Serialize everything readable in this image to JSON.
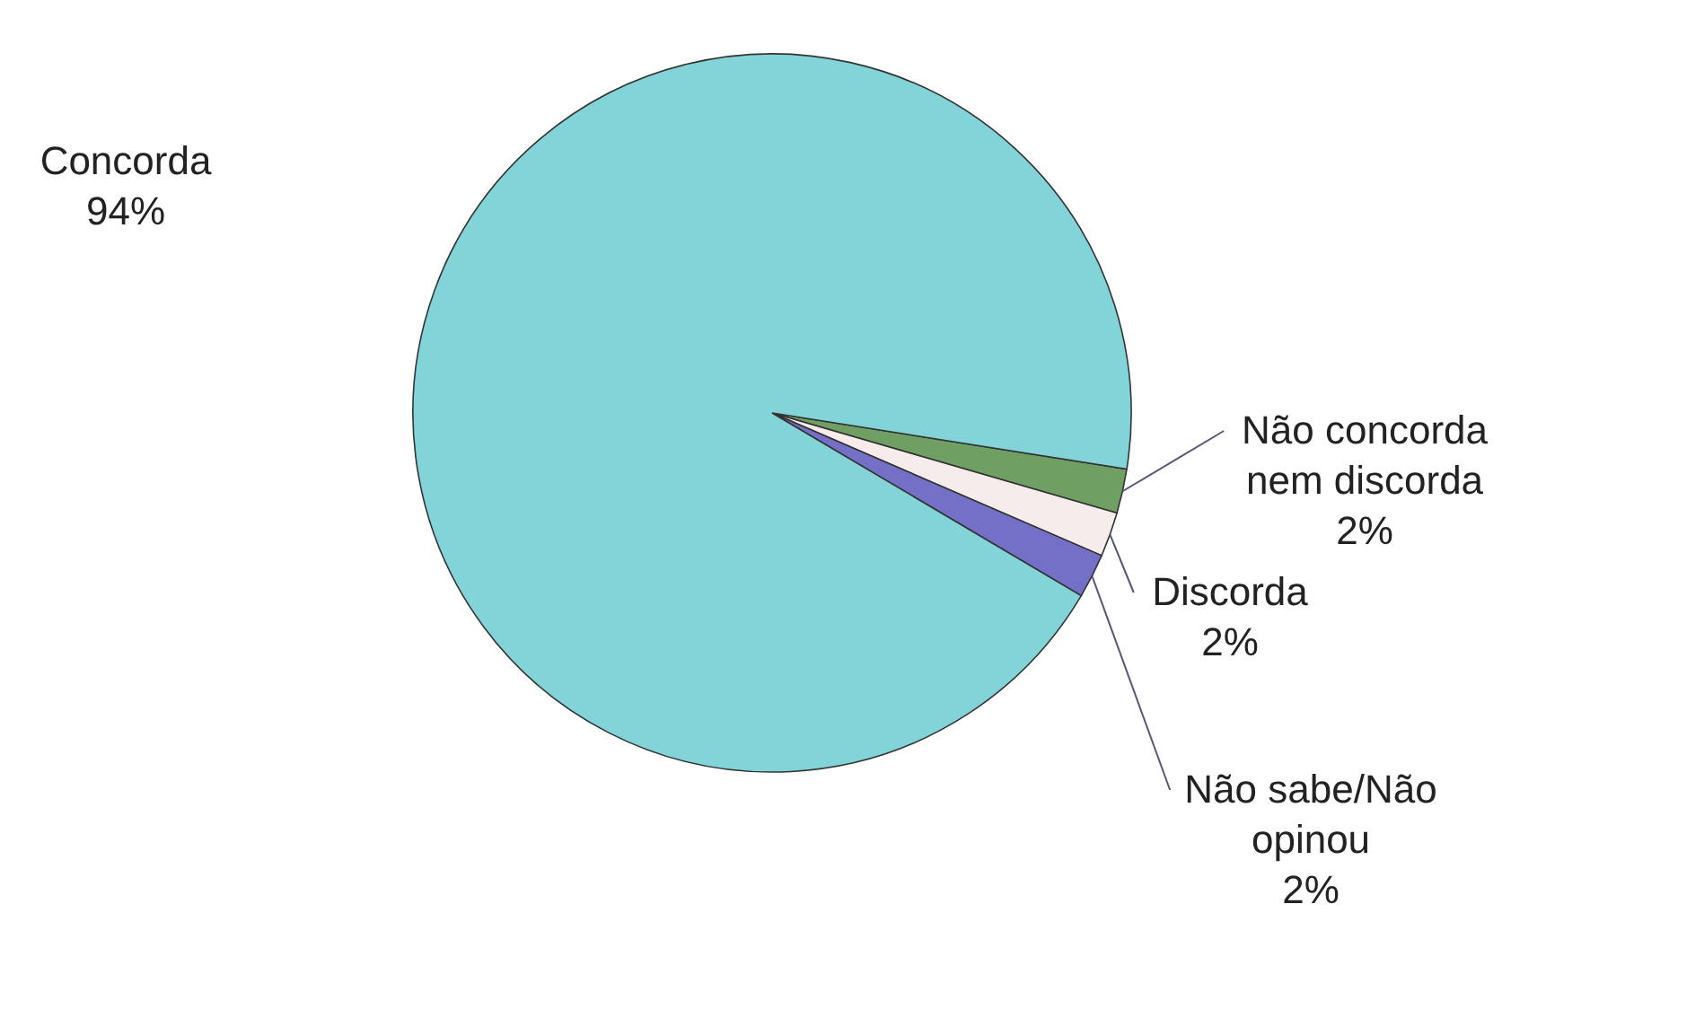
{
  "chart_data": {
    "type": "pie",
    "categories": [
      "Concorda",
      "Não concorda nem discorda",
      "Discorda",
      "Não sabe/Não opinou"
    ],
    "values": [
      94,
      2,
      2,
      2
    ],
    "value_labels": [
      "94%",
      "2%",
      "2%",
      "2%"
    ],
    "colors": [
      "#82d4d9",
      "#6f9f63",
      "#f7ecec",
      "#7470c8"
    ]
  }
}
